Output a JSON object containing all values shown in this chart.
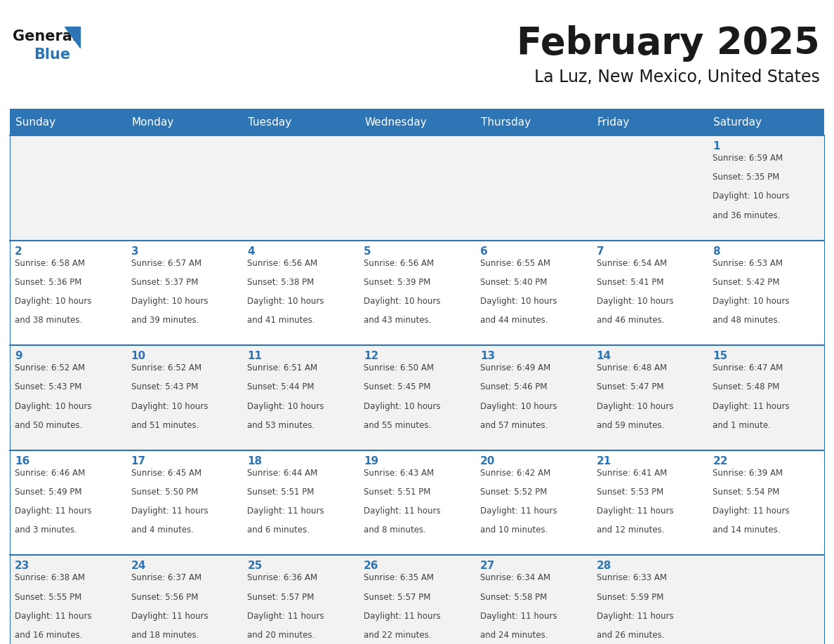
{
  "title": "February 2025",
  "subtitle": "La Luz, New Mexico, United States",
  "header_bg_color": "#2E75B6",
  "header_text_color": "#FFFFFF",
  "cell_bg_color_even": "#F2F2F2",
  "cell_bg_color_odd": "#FFFFFF",
  "grid_line_color": "#2E75B6",
  "day_headers": [
    "Sunday",
    "Monday",
    "Tuesday",
    "Wednesday",
    "Thursday",
    "Friday",
    "Saturday"
  ],
  "title_color": "#1a1a1a",
  "subtitle_color": "#1a1a1a",
  "day_number_color": "#2E75B6",
  "info_text_color": "#404040",
  "logo_general_color": "#1a1a1a",
  "logo_blue_color": "#2E75B6",
  "calendar_data": [
    [
      null,
      null,
      null,
      null,
      null,
      null,
      {
        "day": 1,
        "sunrise": "6:59 AM",
        "sunset": "5:35 PM",
        "daylight_line1": "Daylight: 10 hours",
        "daylight_line2": "and 36 minutes."
      }
    ],
    [
      {
        "day": 2,
        "sunrise": "6:58 AM",
        "sunset": "5:36 PM",
        "daylight_line1": "Daylight: 10 hours",
        "daylight_line2": "and 38 minutes."
      },
      {
        "day": 3,
        "sunrise": "6:57 AM",
        "sunset": "5:37 PM",
        "daylight_line1": "Daylight: 10 hours",
        "daylight_line2": "and 39 minutes."
      },
      {
        "day": 4,
        "sunrise": "6:56 AM",
        "sunset": "5:38 PM",
        "daylight_line1": "Daylight: 10 hours",
        "daylight_line2": "and 41 minutes."
      },
      {
        "day": 5,
        "sunrise": "6:56 AM",
        "sunset": "5:39 PM",
        "daylight_line1": "Daylight: 10 hours",
        "daylight_line2": "and 43 minutes."
      },
      {
        "day": 6,
        "sunrise": "6:55 AM",
        "sunset": "5:40 PM",
        "daylight_line1": "Daylight: 10 hours",
        "daylight_line2": "and 44 minutes."
      },
      {
        "day": 7,
        "sunrise": "6:54 AM",
        "sunset": "5:41 PM",
        "daylight_line1": "Daylight: 10 hours",
        "daylight_line2": "and 46 minutes."
      },
      {
        "day": 8,
        "sunrise": "6:53 AM",
        "sunset": "5:42 PM",
        "daylight_line1": "Daylight: 10 hours",
        "daylight_line2": "and 48 minutes."
      }
    ],
    [
      {
        "day": 9,
        "sunrise": "6:52 AM",
        "sunset": "5:43 PM",
        "daylight_line1": "Daylight: 10 hours",
        "daylight_line2": "and 50 minutes."
      },
      {
        "day": 10,
        "sunrise": "6:52 AM",
        "sunset": "5:43 PM",
        "daylight_line1": "Daylight: 10 hours",
        "daylight_line2": "and 51 minutes."
      },
      {
        "day": 11,
        "sunrise": "6:51 AM",
        "sunset": "5:44 PM",
        "daylight_line1": "Daylight: 10 hours",
        "daylight_line2": "and 53 minutes."
      },
      {
        "day": 12,
        "sunrise": "6:50 AM",
        "sunset": "5:45 PM",
        "daylight_line1": "Daylight: 10 hours",
        "daylight_line2": "and 55 minutes."
      },
      {
        "day": 13,
        "sunrise": "6:49 AM",
        "sunset": "5:46 PM",
        "daylight_line1": "Daylight: 10 hours",
        "daylight_line2": "and 57 minutes."
      },
      {
        "day": 14,
        "sunrise": "6:48 AM",
        "sunset": "5:47 PM",
        "daylight_line1": "Daylight: 10 hours",
        "daylight_line2": "and 59 minutes."
      },
      {
        "day": 15,
        "sunrise": "6:47 AM",
        "sunset": "5:48 PM",
        "daylight_line1": "Daylight: 11 hours",
        "daylight_line2": "and 1 minute."
      }
    ],
    [
      {
        "day": 16,
        "sunrise": "6:46 AM",
        "sunset": "5:49 PM",
        "daylight_line1": "Daylight: 11 hours",
        "daylight_line2": "and 3 minutes."
      },
      {
        "day": 17,
        "sunrise": "6:45 AM",
        "sunset": "5:50 PM",
        "daylight_line1": "Daylight: 11 hours",
        "daylight_line2": "and 4 minutes."
      },
      {
        "day": 18,
        "sunrise": "6:44 AM",
        "sunset": "5:51 PM",
        "daylight_line1": "Daylight: 11 hours",
        "daylight_line2": "and 6 minutes."
      },
      {
        "day": 19,
        "sunrise": "6:43 AM",
        "sunset": "5:51 PM",
        "daylight_line1": "Daylight: 11 hours",
        "daylight_line2": "and 8 minutes."
      },
      {
        "day": 20,
        "sunrise": "6:42 AM",
        "sunset": "5:52 PM",
        "daylight_line1": "Daylight: 11 hours",
        "daylight_line2": "and 10 minutes."
      },
      {
        "day": 21,
        "sunrise": "6:41 AM",
        "sunset": "5:53 PM",
        "daylight_line1": "Daylight: 11 hours",
        "daylight_line2": "and 12 minutes."
      },
      {
        "day": 22,
        "sunrise": "6:39 AM",
        "sunset": "5:54 PM",
        "daylight_line1": "Daylight: 11 hours",
        "daylight_line2": "and 14 minutes."
      }
    ],
    [
      {
        "day": 23,
        "sunrise": "6:38 AM",
        "sunset": "5:55 PM",
        "daylight_line1": "Daylight: 11 hours",
        "daylight_line2": "and 16 minutes."
      },
      {
        "day": 24,
        "sunrise": "6:37 AM",
        "sunset": "5:56 PM",
        "daylight_line1": "Daylight: 11 hours",
        "daylight_line2": "and 18 minutes."
      },
      {
        "day": 25,
        "sunrise": "6:36 AM",
        "sunset": "5:57 PM",
        "daylight_line1": "Daylight: 11 hours",
        "daylight_line2": "and 20 minutes."
      },
      {
        "day": 26,
        "sunrise": "6:35 AM",
        "sunset": "5:57 PM",
        "daylight_line1": "Daylight: 11 hours",
        "daylight_line2": "and 22 minutes."
      },
      {
        "day": 27,
        "sunrise": "6:34 AM",
        "sunset": "5:58 PM",
        "daylight_line1": "Daylight: 11 hours",
        "daylight_line2": "and 24 minutes."
      },
      {
        "day": 28,
        "sunrise": "6:33 AM",
        "sunset": "5:59 PM",
        "daylight_line1": "Daylight: 11 hours",
        "daylight_line2": "and 26 minutes."
      },
      null
    ]
  ]
}
